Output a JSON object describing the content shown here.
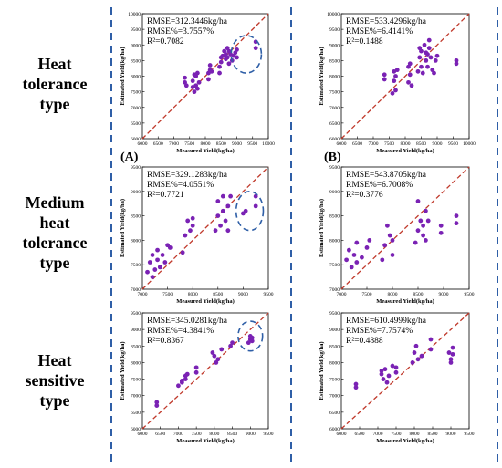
{
  "row_labels": [
    [
      "Heat",
      "tolerance",
      "type"
    ],
    [
      "Medium",
      "heat",
      "tolerance",
      "type"
    ],
    [
      "Heat",
      "sensitive",
      "type"
    ]
  ],
  "panel_letters": [
    "(A)",
    "(B)"
  ],
  "colors": {
    "point": "#7a22b4",
    "fit_line": "#c0392b",
    "divider": "#2f5fa7",
    "highlight_circle": "#2f5fa7"
  },
  "chart_data": [
    {
      "type": "scatter",
      "row": 0,
      "col": 0,
      "xlabel": "Measured Yield(kg/ha)",
      "ylabel": "Estimated Yield(kg/ha)",
      "xlim": [
        6000,
        10000
      ],
      "ylim": [
        6000,
        10000
      ],
      "xticks": [
        "6000",
        "6500",
        "7000",
        "7500",
        "8000",
        "8500",
        "9000",
        "9500",
        "10000"
      ],
      "yticks": [
        "6000",
        "6500",
        "7000",
        "7500",
        "8000",
        "8500",
        "9000",
        "9500",
        "10000"
      ],
      "stats": [
        "RMSE=312.3446kg/ha",
        "RMSE%=3.7557%",
        "R²=0.7082"
      ],
      "circle": {
        "cx": 9300,
        "cy": 8700,
        "rx": 480,
        "ry": 600
      },
      "x": [
        7350,
        7350,
        7400,
        7600,
        7600,
        7650,
        7650,
        7700,
        7700,
        7750,
        7750,
        7800,
        8100,
        8100,
        8150,
        8150,
        8200,
        8450,
        8450,
        8500,
        8500,
        8550,
        8600,
        8650,
        8650,
        8700,
        8700,
        8750,
        8750,
        8800,
        8850,
        8900,
        8950,
        9000,
        9000,
        9600,
        9600
      ],
      "y": [
        7800,
        7950,
        7700,
        7650,
        7850,
        8050,
        7500,
        7700,
        8000,
        7600,
        8100,
        7800,
        7900,
        8100,
        8200,
        8350,
        8150,
        8100,
        8300,
        8450,
        8600,
        8650,
        8800,
        8550,
        8700,
        8900,
        8600,
        8400,
        8800,
        8700,
        8500,
        8650,
        8750,
        8600,
        8850,
        9100,
        8900
      ]
    },
    {
      "type": "scatter",
      "row": 0,
      "col": 1,
      "xlabel": "Measured Yield(kg/ha)",
      "ylabel": "Estimated Yield(kg/ha)",
      "xlim": [
        6000,
        10000
      ],
      "ylim": [
        6000,
        10000
      ],
      "xticks": [
        "6000",
        "6500",
        "7000",
        "7500",
        "8000",
        "8500",
        "9000",
        "9500",
        "10000"
      ],
      "yticks": [
        "6000",
        "6500",
        "7000",
        "7500",
        "8000",
        "8500",
        "9000",
        "9500",
        "10000"
      ],
      "stats": [
        "RMSE=533.4296kg/ha",
        "RMSE%=6.4141%",
        "R²=0.1488"
      ],
      "x": [
        7350,
        7350,
        7600,
        7650,
        7650,
        7700,
        7700,
        7750,
        8100,
        8100,
        8150,
        8150,
        8200,
        8400,
        8450,
        8450,
        8500,
        8500,
        8550,
        8600,
        8650,
        8650,
        8700,
        8700,
        8750,
        8750,
        8800,
        8850,
        8900,
        8950,
        9000,
        9600,
        9600
      ],
      "y": [
        7900,
        8050,
        7450,
        7850,
        8150,
        8000,
        7550,
        8200,
        7800,
        8300,
        8050,
        8400,
        7700,
        8150,
        8900,
        8600,
        8300,
        8800,
        8100,
        9000,
        8750,
        8500,
        8300,
        8700,
        9150,
        8900,
        8600,
        8200,
        8100,
        8500,
        8650,
        8400,
        8500
      ]
    },
    {
      "type": "scatter",
      "row": 1,
      "col": 0,
      "xlabel": "Measured Yield(kg/ha)",
      "ylabel": "Estimated Yield(kg/ha)",
      "xlim": [
        7000,
        9500
      ],
      "ylim": [
        7000,
        9500
      ],
      "xticks": [
        "7000",
        "7500",
        "8000",
        "8500",
        "9000",
        "9500"
      ],
      "yticks": [
        "7000",
        "7500",
        "8000",
        "8500",
        "9000",
        "9500"
      ],
      "stats": [
        "RMSE=329.1283kg/ha",
        "RMSE%=4.0551%",
        "R²=0.7721"
      ],
      "circle": {
        "cx": 9130,
        "cy": 8600,
        "rx": 270,
        "ry": 400
      },
      "x": [
        7100,
        7150,
        7200,
        7200,
        7250,
        7300,
        7300,
        7350,
        7400,
        7450,
        7500,
        7550,
        7800,
        7850,
        7900,
        7950,
        8000,
        8000,
        8450,
        8500,
        8500,
        8550,
        8600,
        8600,
        8650,
        8700,
        8700,
        8750,
        9000,
        9050,
        9250,
        9250
      ],
      "y": [
        7350,
        7550,
        7250,
        7700,
        7400,
        7600,
        7800,
        7450,
        7700,
        7550,
        7900,
        7850,
        7750,
        8100,
        8400,
        8200,
        8450,
        8300,
        8200,
        8500,
        8800,
        8300,
        8600,
        8900,
        8400,
        8700,
        8200,
        8900,
        8550,
        8600,
        8700,
        8900
      ]
    },
    {
      "type": "scatter",
      "row": 1,
      "col": 1,
      "xlabel": "Measured Yield(kg/ha)",
      "ylabel": "Estimated Yield(kg/ha)",
      "xlim": [
        7000,
        9500
      ],
      "ylim": [
        7000,
        9500
      ],
      "xticks": [
        "7000",
        "7500",
        "8000",
        "8500",
        "9000",
        "9500"
      ],
      "yticks": [
        "7000",
        "7500",
        "8000",
        "8500",
        "9000",
        "9500"
      ],
      "stats": [
        "RMSE=543.8705kg/ha",
        "RMSE%=6.7008%",
        "R²=0.3776"
      ],
      "x": [
        7100,
        7150,
        7200,
        7250,
        7300,
        7300,
        7400,
        7500,
        7550,
        7800,
        7850,
        7900,
        7950,
        8000,
        8000,
        8450,
        8500,
        8500,
        8550,
        8600,
        8600,
        8650,
        8650,
        8700,
        8950,
        8950,
        9250,
        9250
      ],
      "y": [
        7600,
        7800,
        7450,
        7700,
        7950,
        7550,
        7650,
        7850,
        8000,
        7600,
        7900,
        8300,
        8100,
        7700,
        8000,
        7950,
        8200,
        8800,
        8400,
        8300,
        8100,
        8600,
        8000,
        8400,
        8300,
        8150,
        8500,
        8350
      ]
    },
    {
      "type": "scatter",
      "row": 2,
      "col": 0,
      "xlabel": "Measured Yield(kg/ha)",
      "ylabel": "Estimated Yield(kg/ha)",
      "xlim": [
        6000,
        9500
      ],
      "ylim": [
        6000,
        9500
      ],
      "xticks": [
        "6000",
        "6500",
        "7000",
        "7500",
        "8000",
        "8500",
        "9000",
        "9500"
      ],
      "yticks": [
        "6000",
        "6500",
        "7000",
        "7500",
        "8000",
        "8500",
        "9000",
        "9500"
      ],
      "stats": [
        "RMSE=345.0281kg/ha",
        "RMSE%=4.3841%",
        "R²=0.8367"
      ],
      "circle": {
        "cx": 9000,
        "cy": 8800,
        "rx": 340,
        "ry": 450
      },
      "x": [
        6400,
        6400,
        7000,
        7100,
        7100,
        7200,
        7200,
        7250,
        7500,
        7500,
        7950,
        8000,
        8050,
        8100,
        8200,
        8450,
        8500,
        8950,
        9000,
        9000,
        9050,
        9050
      ],
      "y": [
        6700,
        6800,
        7300,
        7400,
        7450,
        7500,
        7600,
        7650,
        7700,
        7850,
        8300,
        8200,
        8000,
        8100,
        8400,
        8500,
        8600,
        8600,
        8700,
        8800,
        8650,
        8750
      ]
    },
    {
      "type": "scatter",
      "row": 2,
      "col": 1,
      "xlabel": "Measured Yield(kg/ha)",
      "ylabel": "Estimated Yield(kg/ha)",
      "xlim": [
        6000,
        9500
      ],
      "ylim": [
        6000,
        9500
      ],
      "xticks": [
        "6000",
        "6500",
        "7000",
        "7500",
        "8000",
        "8500",
        "9000",
        "9500"
      ],
      "yticks": [
        "6000",
        "6500",
        "7000",
        "7500",
        "8000",
        "8500",
        "9000",
        "9500"
      ],
      "stats": [
        "RMSE=610.4999kg/ha",
        "RMSE%=7.7574%",
        "R²=0.4888"
      ],
      "x": [
        6400,
        6400,
        7100,
        7100,
        7150,
        7200,
        7250,
        7300,
        7400,
        7500,
        7500,
        7950,
        8000,
        8050,
        8100,
        8200,
        8450,
        8450,
        8950,
        9000,
        9000,
        9050,
        9050
      ],
      "y": [
        7350,
        7250,
        7750,
        7650,
        7500,
        7800,
        7400,
        7600,
        7900,
        7700,
        7850,
        8000,
        8300,
        8500,
        8100,
        8200,
        8400,
        8700,
        8300,
        8000,
        8100,
        8450,
        8250
      ]
    }
  ]
}
